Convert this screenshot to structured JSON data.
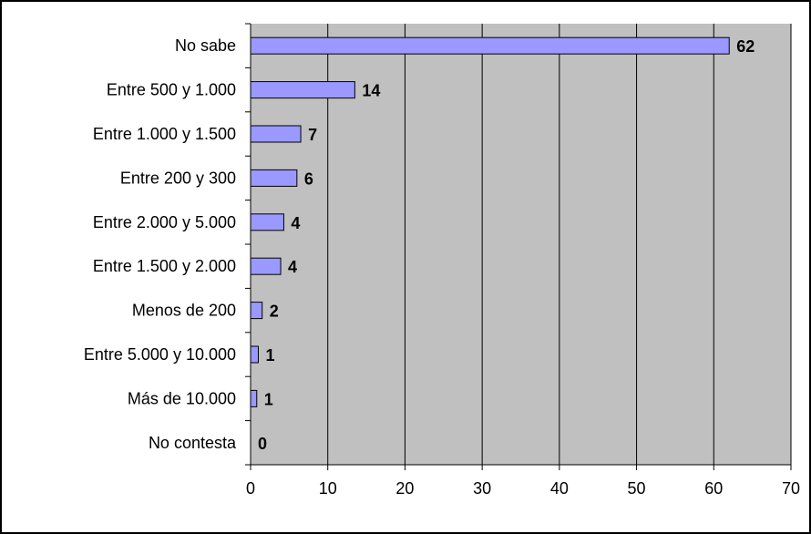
{
  "chart_data": {
    "type": "bar",
    "orientation": "horizontal",
    "categories": [
      "No sabe",
      "Entre 500 y 1.000",
      "Entre 1.000 y 1.500",
      "Entre 200 y 300",
      "Entre 2.000 y 5.000",
      "Entre 1.500 y 2.000",
      "Menos de 200",
      "Entre 5.000 y 10.000",
      "Más de 10.000",
      "No contesta"
    ],
    "values": [
      62,
      13.5,
      6.5,
      6,
      4.3,
      3.9,
      1.5,
      1,
      0.8,
      0
    ],
    "data_labels": [
      "62",
      "14",
      "7",
      "6",
      "4",
      "4",
      "2",
      "1",
      "1",
      "0"
    ],
    "xlim": [
      0,
      70
    ],
    "xticks": [
      0,
      10,
      20,
      30,
      40,
      50,
      60,
      70
    ],
    "xtick_labels": [
      "0",
      "10",
      "20",
      "30",
      "40",
      "50",
      "60",
      "70"
    ],
    "grid": "vertical",
    "title": "",
    "xlabel": "",
    "ylabel": "",
    "colors": {
      "bar_fill": "#9999ff",
      "bar_stroke": "#000000",
      "plot_background": "#c0c0c0",
      "grid": "#000000"
    }
  }
}
